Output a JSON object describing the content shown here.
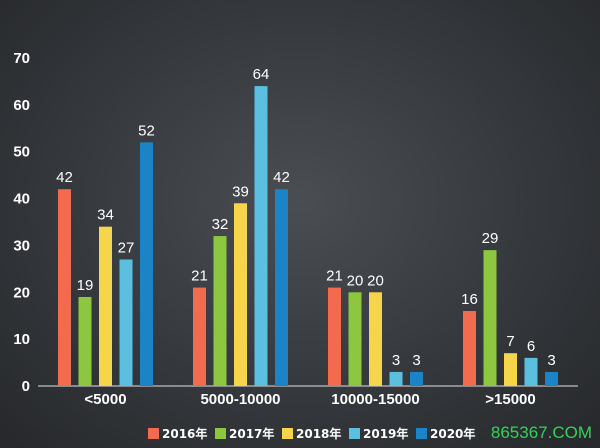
{
  "chart_data": {
    "type": "bar",
    "categories": [
      "<5000",
      "5000-10000",
      "10000-15000",
      ">15000"
    ],
    "series": [
      {
        "name": "2016年",
        "color": "#f26b4f",
        "values": [
          42,
          21,
          21,
          16
        ]
      },
      {
        "name": "2017年",
        "color": "#8dc63f",
        "values": [
          19,
          32,
          20,
          29
        ]
      },
      {
        "name": "2018年",
        "color": "#f7d54a",
        "values": [
          34,
          39,
          20,
          7
        ]
      },
      {
        "name": "2019年",
        "color": "#5bc0e0",
        "values": [
          27,
          64,
          3,
          6
        ]
      },
      {
        "name": "2020年",
        "color": "#1b84c6",
        "values": [
          52,
          42,
          3,
          3
        ]
      }
    ],
    "yticks": [
      0,
      10,
      20,
      30,
      40,
      50,
      60,
      70
    ],
    "ylim": [
      0,
      70
    ],
    "legend_position": "bottom",
    "grid": false
  },
  "watermark": "865367.COM"
}
